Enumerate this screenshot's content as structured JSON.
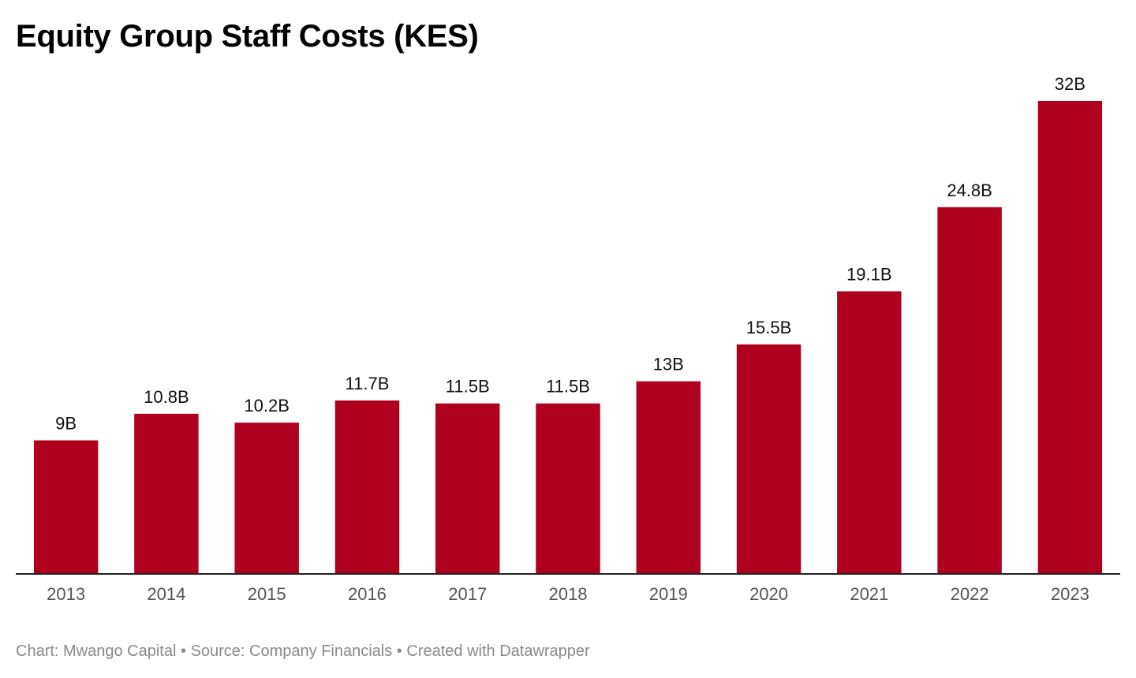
{
  "title": "Equity Group Staff Costs (KES)",
  "footer": {
    "chart_label": "Chart: Mwango Capital",
    "separator": " • ",
    "source_label": "Source: Company Financials",
    "created_label": "Created with Datawrapper"
  },
  "colors": {
    "bar": "#b00020",
    "axis": "#222222",
    "tick_label": "#555555",
    "value_label": "#111111",
    "footer": "#8a8a8a"
  },
  "chart_data": {
    "type": "bar",
    "title": "Equity Group Staff Costs (KES)",
    "xlabel": "",
    "ylabel": "",
    "categories": [
      "2013",
      "2014",
      "2015",
      "2016",
      "2017",
      "2018",
      "2019",
      "2020",
      "2021",
      "2022",
      "2023"
    ],
    "values": [
      9,
      10.8,
      10.2,
      11.7,
      11.5,
      11.5,
      13,
      15.5,
      19.1,
      24.8,
      32
    ],
    "value_labels": [
      "9B",
      "10.8B",
      "10.2B",
      "11.7B",
      "11.5B",
      "11.5B",
      "13B",
      "15.5B",
      "19.1B",
      "24.8B",
      "32B"
    ],
    "unit": "B",
    "ylim": [
      0,
      32
    ],
    "grid": false,
    "legend": "none"
  }
}
